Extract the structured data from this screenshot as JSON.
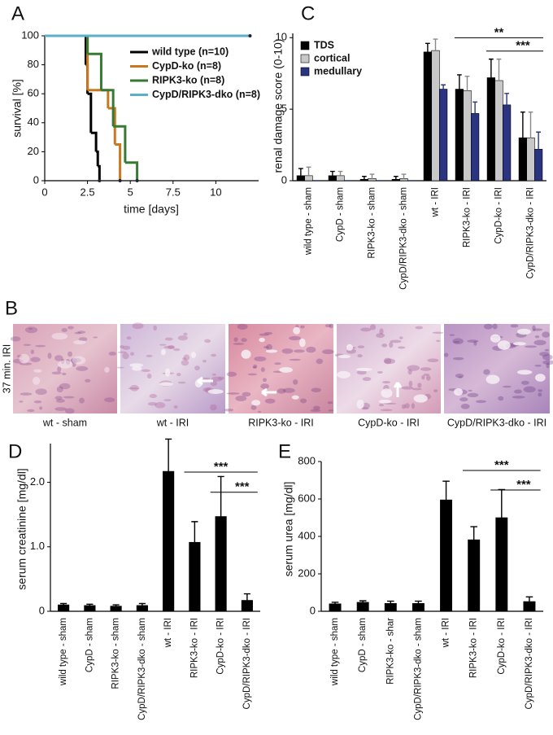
{
  "chart_data": [
    {
      "type": "line",
      "step": true,
      "panel": "A",
      "x_label": "time [days]",
      "y_label": "survival [%]",
      "xlim": [
        0,
        12.5
      ],
      "ylim": [
        0,
        100
      ],
      "xticks": [
        0,
        2.5,
        5,
        7.5,
        10
      ],
      "yticks": [
        0,
        20,
        40,
        60,
        80,
        100
      ],
      "legend": "upper right",
      "series": [
        {
          "name": "wild type (n=10)",
          "color": "#000000",
          "x": [
            0,
            2.4,
            2.5,
            2.7,
            3.0,
            3.1,
            3.2
          ],
          "values": [
            100,
            80,
            60,
            33,
            20,
            10,
            0
          ]
        },
        {
          "name": "CypD-ko (n=8)",
          "color": "#c8781e",
          "x": [
            0,
            2.5,
            3.7,
            4.1,
            4.4
          ],
          "values": [
            100,
            62.5,
            50,
            25,
            0
          ]
        },
        {
          "name": "RIPK3-ko (n=8)",
          "color": "#367a33",
          "x": [
            0,
            2.5,
            3.3,
            4.0,
            4.7,
            5.4
          ],
          "values": [
            100,
            87.5,
            62.5,
            37.5,
            12.5,
            0
          ]
        },
        {
          "name": "CypD/RIPK3-dko (n=8)",
          "color": "#5ab0c8",
          "x": [
            0,
            12
          ],
          "values": [
            100,
            100
          ]
        }
      ]
    },
    {
      "type": "bar",
      "panel": "C",
      "y_label": "renal damage score (0-10)",
      "ylim": [
        0,
        10.3
      ],
      "yticks": [
        0,
        5,
        10
      ],
      "legend": "upper left",
      "categories": [
        "wild type - sham",
        "CypD - sham",
        "RIPK3-ko - sham",
        "CypD/RIPK3-dko - sham",
        "wt - IRI",
        "RIPK3-ko - IRI",
        "CypD-ko - IRI",
        "CypD/RIPK3-dko - IRI"
      ],
      "series": [
        {
          "name": "TDS",
          "color": "#000000",
          "values": [
            0.35,
            0.35,
            0.1,
            0.1,
            9.0,
            6.4,
            7.2,
            3.0
          ],
          "errors": [
            0.5,
            0.3,
            0.2,
            0.2,
            0.6,
            1.0,
            1.3,
            1.8
          ]
        },
        {
          "name": "cortical",
          "color": "#c8c8c8",
          "values": [
            0.35,
            0.35,
            0.15,
            0.15,
            9.1,
            6.3,
            7.0,
            3.0
          ],
          "errors": [
            0.6,
            0.3,
            0.3,
            0.3,
            0.8,
            1.0,
            1.5,
            1.8
          ]
        },
        {
          "name": "medullary",
          "color": "#2b3480",
          "values": [
            0,
            0,
            0,
            0,
            6.4,
            4.7,
            5.3,
            2.2
          ],
          "errors": [
            0,
            0,
            0,
            0,
            0.3,
            0.8,
            0.8,
            1.2
          ]
        }
      ],
      "annotations": [
        "**",
        "***"
      ]
    },
    {
      "type": "bar",
      "panel": "D",
      "y_label": "serum creatinine [mg/dl]",
      "color": "#000000",
      "ylim": [
        0,
        2.6
      ],
      "yticks": [
        0,
        {
          "value": 1,
          "label": "1.0"
        },
        {
          "value": 2,
          "label": "2.0"
        }
      ],
      "categories": [
        "wild type - sham",
        "CypD - sham",
        "RIPK3-ko - sham",
        "CypD/RIPK3-dko - sham",
        "wt - IRI",
        "RIPK3-ko - IRI",
        "CypD-ko - IRI",
        "CypD/RIPK3-dko - IRI"
      ],
      "values": [
        0.1,
        0.09,
        0.08,
        0.09,
        2.17,
        1.07,
        1.47,
        0.17
      ],
      "errors": [
        0.02,
        0.02,
        0.02,
        0.03,
        0.5,
        0.32,
        0.62,
        0.1
      ],
      "annotations": [
        "***",
        "***"
      ]
    },
    {
      "type": "bar",
      "panel": "E",
      "y_label": "serum urea [mg/dl]",
      "color": "#000000",
      "ylim": [
        0,
        800
      ],
      "yticks": [
        0,
        200,
        400,
        600,
        800
      ],
      "categories": [
        "wild type - sham",
        "CypD - sham",
        "RIPK3-ko - shar",
        "CypD/RIPK3-dko - sham",
        "wt - IRI",
        "RIPK3-ko - IRI",
        "CypD-ko - IRI",
        "CypD/RIPK3-dko - IRI"
      ],
      "values": [
        40,
        48,
        42,
        42,
        595,
        382,
        500,
        52
      ],
      "errors": [
        8,
        8,
        12,
        12,
        100,
        70,
        150,
        25
      ],
      "annotations": [
        "***",
        "***"
      ]
    }
  ],
  "panel_b": {
    "panel": "B",
    "side_label": "37 min. IRI",
    "captions": [
      "wt - sham",
      "wt - IRI",
      "RIPK3-ko - IRI",
      "CypD-ko - IRI",
      "CypD/RIPK3-dko - IRI"
    ]
  }
}
